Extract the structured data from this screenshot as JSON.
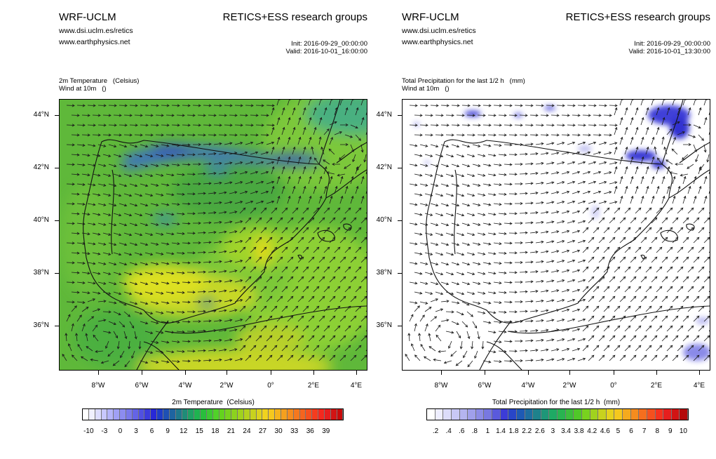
{
  "panels": [
    {
      "model": "WRF-UCLM",
      "url1": "www.dsi.uclm.es/retics",
      "url2": "www.earthphysics.net",
      "groups": "RETICS+ESS research groups",
      "init": "Init: 2016-09-29_00:00:00",
      "valid": "Valid: 2016-10-01_16:00:00",
      "var_line1": "2m Temperature   (Celsius)",
      "var_line2": "Wind at 10m   ()",
      "field": "temperature",
      "colorbar_title": "2m Temperature  (Celsius)",
      "colorbar_labels": [
        "-10",
        "-3",
        "0",
        "3",
        "6",
        "9",
        "12",
        "15",
        "18",
        "21",
        "24",
        "27",
        "30",
        "33",
        "36",
        "39"
      ]
    },
    {
      "model": "WRF-UCLM",
      "url1": "www.dsi.uclm.es/retics",
      "url2": "www.earthphysics.net",
      "groups": "RETICS+ESS research groups",
      "init": "Init: 2016-09-29_00:00:00",
      "valid": "Valid: 2016-10-01_13:30:00",
      "var_line1": "Total Precipitation for the last 1/2 h   (mm)",
      "var_line2": "Wind at 10m   ()",
      "field": "precipitation",
      "colorbar_title": "Total Precipitation for the last 1/2 h  (mm)",
      "colorbar_labels": [
        ".2",
        ".4",
        ".6",
        ".8",
        "1",
        "1.4",
        "1.8",
        "2.2",
        "2.6",
        "3",
        "3.4",
        "3.8",
        "4.2",
        "4.6",
        "5",
        "6",
        "7",
        "8",
        "9",
        "10"
      ]
    }
  ],
  "lat_ticks": [
    "44°N",
    "42°N",
    "40°N",
    "38°N",
    "36°N"
  ],
  "lon_ticks": [
    "8°W",
    "6°W",
    "4°W",
    "2°W",
    "0°",
    "2°E",
    "4°E"
  ],
  "colors": {
    "temperature_scale": [
      "#ffffff",
      "#f0f0ff",
      "#dcdcff",
      "#c8c8ff",
      "#b4b4fa",
      "#a0a0f5",
      "#8c8cf0",
      "#7878eb",
      "#6464e6",
      "#5050e1",
      "#3c3cdc",
      "#2828d7",
      "#1e3cc8",
      "#1e50b4",
      "#1e64a0",
      "#1e788c",
      "#1e8c78",
      "#1ea064",
      "#1eb450",
      "#28be3c",
      "#3cc832",
      "#50d228",
      "#64d21e",
      "#78d21e",
      "#8cd21e",
      "#a0d21e",
      "#b4d21e",
      "#c8d21e",
      "#dcd21e",
      "#f0d21e",
      "#f5c81e",
      "#f5b41e",
      "#f5a01e",
      "#f58c1e",
      "#f5781e",
      "#f5641e",
      "#f5501e",
      "#f53c1e",
      "#f5281e",
      "#e61e1e",
      "#d21414",
      "#c80a0a"
    ],
    "precip_scale": [
      "#ffffff",
      "#eeeeff",
      "#dcdcfa",
      "#c8c8f5",
      "#b4b4f0",
      "#a0a0eb",
      "#8c8ce6",
      "#7878e1",
      "#5a5adc",
      "#3c3cd7",
      "#2846c8",
      "#1e5ab4",
      "#1e6ea0",
      "#1e828c",
      "#1e9678",
      "#1eaa64",
      "#28b450",
      "#3cbe3c",
      "#50c828",
      "#78d21e",
      "#a0d21e",
      "#c8d21e",
      "#e6d21e",
      "#f5c81e",
      "#f5aa1e",
      "#f58c1e",
      "#f56e1e",
      "#f5501e",
      "#f5321e",
      "#e61e1e",
      "#d21414",
      "#b40a0a"
    ],
    "land_green": "#5cb83c",
    "sea_green": "#78c832",
    "hot_yellow": "#d2dc1e",
    "cold_blue": "#2846c8",
    "precip_blue": "#2828d7"
  }
}
